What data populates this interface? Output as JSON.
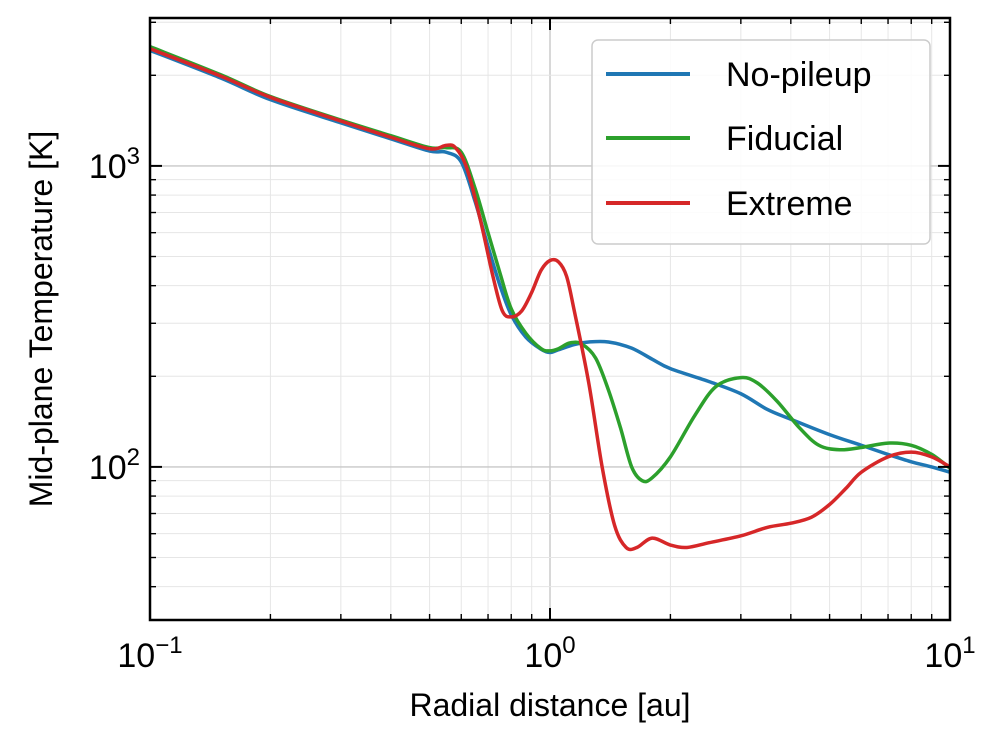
{
  "chart_data": {
    "type": "line",
    "xlabel": "Radial distance [au]",
    "ylabel": "Mid-plane Temperature [K]",
    "x_scale": "log",
    "y_scale": "log",
    "xlim": [
      0.1,
      10
    ],
    "ylim": [
      31,
      3100
    ],
    "grid": true,
    "legend_position": "top-right",
    "x_ticks": [
      {
        "value": 0.1,
        "base": "10",
        "exp": "−1"
      },
      {
        "value": 1,
        "base": "10",
        "exp": "0"
      },
      {
        "value": 10,
        "base": "10",
        "exp": "1"
      }
    ],
    "y_ticks": [
      {
        "value": 100,
        "base": "10",
        "exp": "2"
      },
      {
        "value": 1000,
        "base": "10",
        "exp": "3"
      }
    ],
    "series": [
      {
        "name": "No-pileup",
        "color": "#1f77b4",
        "points": [
          [
            0.1,
            2420
          ],
          [
            0.15,
            1960
          ],
          [
            0.2,
            1660
          ],
          [
            0.3,
            1390
          ],
          [
            0.4,
            1230
          ],
          [
            0.5,
            1120
          ],
          [
            0.55,
            1110
          ],
          [
            0.6,
            1030
          ],
          [
            0.65,
            760
          ],
          [
            0.7,
            540
          ],
          [
            0.75,
            400
          ],
          [
            0.8,
            320
          ],
          [
            0.87,
            270
          ],
          [
            0.95,
            246
          ],
          [
            1.0,
            240
          ],
          [
            1.05,
            245
          ],
          [
            1.15,
            255
          ],
          [
            1.25,
            260
          ],
          [
            1.4,
            260
          ],
          [
            1.6,
            248
          ],
          [
            1.8,
            228
          ],
          [
            2.0,
            212
          ],
          [
            2.5,
            192
          ],
          [
            3.0,
            175
          ],
          [
            3.5,
            155
          ],
          [
            4.0,
            144
          ],
          [
            5.0,
            128
          ],
          [
            6.0,
            118
          ],
          [
            7.0,
            110
          ],
          [
            8.0,
            104
          ],
          [
            9.0,
            100
          ],
          [
            10.0,
            96
          ]
        ]
      },
      {
        "name": "Fiducial",
        "color": "#2ca02c",
        "points": [
          [
            0.1,
            2490
          ],
          [
            0.15,
            2010
          ],
          [
            0.2,
            1700
          ],
          [
            0.3,
            1420
          ],
          [
            0.4,
            1260
          ],
          [
            0.5,
            1150
          ],
          [
            0.55,
            1150
          ],
          [
            0.6,
            1110
          ],
          [
            0.65,
            840
          ],
          [
            0.7,
            600
          ],
          [
            0.75,
            440
          ],
          [
            0.8,
            335
          ],
          [
            0.87,
            278
          ],
          [
            0.95,
            247
          ],
          [
            1.0,
            243
          ],
          [
            1.05,
            247
          ],
          [
            1.12,
            258
          ],
          [
            1.2,
            256
          ],
          [
            1.3,
            230
          ],
          [
            1.4,
            180
          ],
          [
            1.5,
            135
          ],
          [
            1.6,
            100
          ],
          [
            1.7,
            90
          ],
          [
            1.8,
            92
          ],
          [
            2.0,
            108
          ],
          [
            2.3,
            148
          ],
          [
            2.6,
            185
          ],
          [
            3.0,
            198
          ],
          [
            3.3,
            190
          ],
          [
            3.7,
            165
          ],
          [
            4.2,
            135
          ],
          [
            4.7,
            118
          ],
          [
            5.3,
            114
          ],
          [
            6.0,
            116
          ],
          [
            7.0,
            120
          ],
          [
            8.0,
            118
          ],
          [
            9.0,
            110
          ],
          [
            10.0,
            99
          ]
        ]
      },
      {
        "name": "Extreme",
        "color": "#d62728",
        "points": [
          [
            0.1,
            2450
          ],
          [
            0.15,
            1990
          ],
          [
            0.2,
            1690
          ],
          [
            0.3,
            1410
          ],
          [
            0.4,
            1245
          ],
          [
            0.5,
            1140
          ],
          [
            0.55,
            1170
          ],
          [
            0.58,
            1150
          ],
          [
            0.62,
            980
          ],
          [
            0.67,
            660
          ],
          [
            0.72,
            430
          ],
          [
            0.76,
            330
          ],
          [
            0.8,
            315
          ],
          [
            0.85,
            330
          ],
          [
            0.9,
            380
          ],
          [
            0.95,
            450
          ],
          [
            1.0,
            485
          ],
          [
            1.05,
            480
          ],
          [
            1.1,
            430
          ],
          [
            1.15,
            330
          ],
          [
            1.25,
            190
          ],
          [
            1.35,
            100
          ],
          [
            1.45,
            64
          ],
          [
            1.55,
            54
          ],
          [
            1.65,
            54
          ],
          [
            1.8,
            58
          ],
          [
            2.0,
            55
          ],
          [
            2.2,
            54
          ],
          [
            2.5,
            56
          ],
          [
            3.0,
            59
          ],
          [
            3.5,
            63
          ],
          [
            4.0,
            65
          ],
          [
            4.5,
            68
          ],
          [
            5.0,
            75
          ],
          [
            5.5,
            85
          ],
          [
            6.0,
            96
          ],
          [
            7.0,
            108
          ],
          [
            8.0,
            112
          ],
          [
            9.0,
            108
          ],
          [
            10.0,
            100
          ]
        ]
      }
    ]
  }
}
